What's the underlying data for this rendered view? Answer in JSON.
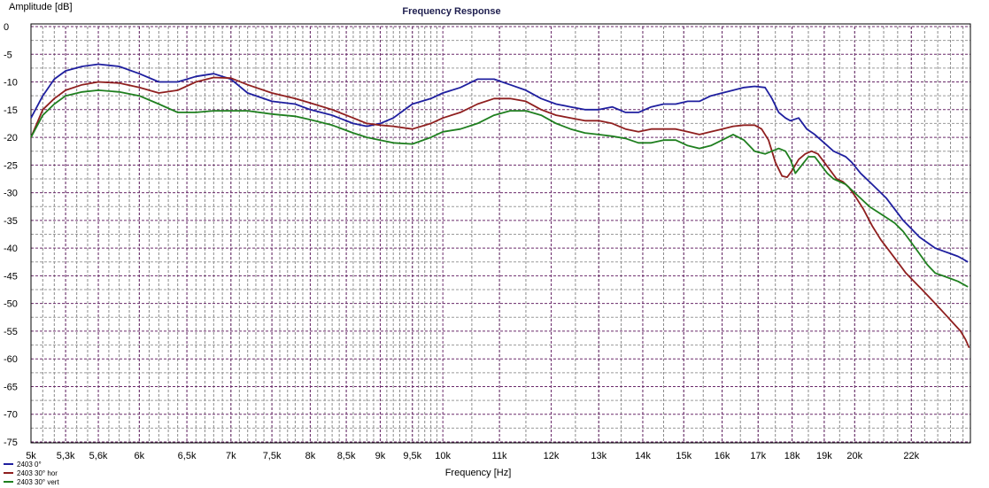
{
  "chart_data": {
    "type": "line",
    "title": "Frequency Response",
    "xlabel": "Frequency [Hz]",
    "ylabel": "Amplitude [dB]",
    "xscale": "log",
    "xlim": [
      5000,
      24300
    ],
    "ylim": [
      -75,
      0
    ],
    "grid": true,
    "legend_position": "bottom-left",
    "y_ticks": [
      0,
      -5,
      -10,
      -15,
      -20,
      -25,
      -30,
      -35,
      -40,
      -45,
      -50,
      -55,
      -60,
      -65,
      -70,
      -75
    ],
    "x_ticks": [
      {
        "value": 5000,
        "label": "5k"
      },
      {
        "value": 5300,
        "label": "5,3k"
      },
      {
        "value": 5600,
        "label": "5,6k"
      },
      {
        "value": 6000,
        "label": "6k"
      },
      {
        "value": 6500,
        "label": "6,5k"
      },
      {
        "value": 7000,
        "label": "7k"
      },
      {
        "value": 7500,
        "label": "7,5k"
      },
      {
        "value": 8000,
        "label": "8k"
      },
      {
        "value": 8500,
        "label": "8,5k"
      },
      {
        "value": 9000,
        "label": "9k"
      },
      {
        "value": 9500,
        "label": "9,5k"
      },
      {
        "value": 10000,
        "label": "10k"
      },
      {
        "value": 11000,
        "label": "11k"
      },
      {
        "value": 12000,
        "label": "12k"
      },
      {
        "value": 13000,
        "label": "13k"
      },
      {
        "value": 14000,
        "label": "14k"
      },
      {
        "value": 15000,
        "label": "15k"
      },
      {
        "value": 16000,
        "label": "16k"
      },
      {
        "value": 17000,
        "label": "17k"
      },
      {
        "value": 18000,
        "label": "18k"
      },
      {
        "value": 19000,
        "label": "19k"
      },
      {
        "value": 20000,
        "label": "20k"
      },
      {
        "value": 22000,
        "label": "22k"
      }
    ],
    "series": [
      {
        "name": "2403 0°",
        "color": "#1f1f9f",
        "x": [
          5000,
          5100,
          5200,
          5300,
          5450,
          5600,
          5800,
          6000,
          6200,
          6400,
          6600,
          6800,
          7000,
          7200,
          7500,
          7800,
          8000,
          8300,
          8600,
          8800,
          9000,
          9200,
          9500,
          9800,
          10000,
          10300,
          10600,
          10900,
          11200,
          11500,
          11800,
          12100,
          12400,
          12700,
          13000,
          13300,
          13600,
          13900,
          14200,
          14500,
          14800,
          15100,
          15400,
          15700,
          16000,
          16300,
          16600,
          16900,
          17200,
          17400,
          17600,
          17800,
          17950,
          18200,
          18450,
          18700,
          18900,
          19100,
          19300,
          19500,
          19700,
          19900,
          20200,
          20500,
          20800,
          21100,
          21400,
          21700,
          22000,
          22300,
          22600,
          22900,
          23200,
          23500,
          23800,
          24000,
          24200
        ],
        "y": [
          -16.5,
          -12.5,
          -9.5,
          -8,
          -7.2,
          -6.8,
          -7.2,
          -8.5,
          -10,
          -10,
          -9,
          -8.5,
          -9.5,
          -12,
          -13.5,
          -14,
          -15,
          -16,
          -17.5,
          -18,
          -17.5,
          -16.5,
          -14,
          -13,
          -12,
          -11,
          -9.5,
          -9.5,
          -10.5,
          -11.5,
          -13,
          -14,
          -14.5,
          -15,
          -15,
          -14.5,
          -15.5,
          -15.5,
          -14.5,
          -14,
          -14,
          -13.5,
          -13.5,
          -12.5,
          -12,
          -11.5,
          -11,
          -10.8,
          -11,
          -13,
          -15.5,
          -16.5,
          -17,
          -16.5,
          -18.5,
          -19.5,
          -20.5,
          -21.5,
          -22.5,
          -23,
          -23.5,
          -24.5,
          -26.5,
          -28,
          -29.5,
          -31,
          -33,
          -35,
          -36.5,
          -38,
          -39,
          -40,
          -40.5,
          -41,
          -41.5,
          -42,
          -42.5
        ]
      },
      {
        "name": "2403 30° hor",
        "color": "#8f1f1f",
        "x": [
          5000,
          5100,
          5200,
          5300,
          5450,
          5600,
          5800,
          6000,
          6200,
          6400,
          6600,
          6800,
          7000,
          7200,
          7500,
          7800,
          8000,
          8300,
          8600,
          8800,
          9000,
          9200,
          9500,
          9800,
          10000,
          10300,
          10600,
          10900,
          11200,
          11500,
          11800,
          12100,
          12400,
          12700,
          13000,
          13300,
          13600,
          13900,
          14200,
          14500,
          14800,
          15100,
          15400,
          15700,
          16000,
          16300,
          16600,
          16900,
          17100,
          17300,
          17500,
          17700,
          17850,
          18000,
          18200,
          18400,
          18600,
          18800,
          19000,
          19200,
          19400,
          19600,
          19800,
          20000,
          20300,
          20600,
          20900,
          21200,
          21500,
          21800,
          22100,
          22400,
          22700,
          23000,
          23300,
          23600,
          23900,
          24100,
          24250
        ],
        "y": [
          -20,
          -15,
          -13,
          -11.5,
          -10.5,
          -10,
          -10.2,
          -11,
          -12,
          -11.5,
          -10,
          -9.2,
          -9.3,
          -10.5,
          -12,
          -13,
          -13.8,
          -15,
          -16.5,
          -17.5,
          -17.8,
          -18,
          -18.5,
          -17.5,
          -16.5,
          -15.5,
          -14,
          -13,
          -13,
          -13.5,
          -15,
          -16,
          -16.5,
          -17,
          -17,
          -17.5,
          -18.5,
          -19,
          -18.5,
          -18.5,
          -18.5,
          -19,
          -19.5,
          -19,
          -18.5,
          -18,
          -17.8,
          -17.8,
          -18.5,
          -20.5,
          -24.5,
          -27,
          -27.2,
          -26,
          -24,
          -23,
          -22.5,
          -23,
          -24.5,
          -26,
          -27.5,
          -28,
          -29,
          -30.5,
          -33,
          -36,
          -38.5,
          -40.5,
          -42.5,
          -44.5,
          -46,
          -47.5,
          -49,
          -50.5,
          -52,
          -53.5,
          -55,
          -56.5,
          -58
        ]
      },
      {
        "name": "2403 30° vert",
        "color": "#1f7f1f",
        "x": [
          5000,
          5100,
          5200,
          5300,
          5450,
          5600,
          5800,
          6000,
          6200,
          6400,
          6600,
          6800,
          7000,
          7200,
          7500,
          7800,
          8000,
          8300,
          8600,
          8800,
          9000,
          9200,
          9500,
          9800,
          10000,
          10300,
          10600,
          10900,
          11200,
          11500,
          11800,
          12100,
          12400,
          12700,
          13000,
          13300,
          13600,
          13900,
          14200,
          14500,
          14800,
          15100,
          15400,
          15700,
          16000,
          16300,
          16600,
          16900,
          17200,
          17400,
          17600,
          17800,
          17950,
          18100,
          18300,
          18500,
          18700,
          18900,
          19100,
          19300,
          19500,
          19700,
          19900,
          20200,
          20500,
          20800,
          21100,
          21400,
          21700,
          22000,
          22300,
          22600,
          22900,
          23200,
          23500,
          23800,
          24000,
          24200
        ],
        "y": [
          -20,
          -16,
          -14,
          -12.5,
          -11.8,
          -11.5,
          -11.8,
          -12.5,
          -14,
          -15.5,
          -15.5,
          -15.2,
          -15.2,
          -15.2,
          -15.8,
          -16.2,
          -16.8,
          -17.8,
          -19.2,
          -20,
          -20.5,
          -21,
          -21.2,
          -20,
          -19,
          -18.5,
          -17.5,
          -16,
          -15.2,
          -15.2,
          -16,
          -17.5,
          -18.5,
          -19.2,
          -19.5,
          -19.8,
          -20.2,
          -21,
          -21,
          -20.5,
          -20.5,
          -21.5,
          -22,
          -21.5,
          -20.5,
          -19.5,
          -20.5,
          -22.5,
          -23,
          -22.5,
          -22,
          -22.5,
          -24,
          -26.5,
          -25,
          -23.5,
          -23.5,
          -25,
          -26.5,
          -27.5,
          -28,
          -28.5,
          -29.5,
          -31,
          -32.5,
          -33.5,
          -34.5,
          -35.5,
          -37,
          -39,
          -41,
          -43,
          -44.5,
          -45,
          -45.5,
          -46,
          -46.5,
          -47
        ]
      }
    ]
  }
}
